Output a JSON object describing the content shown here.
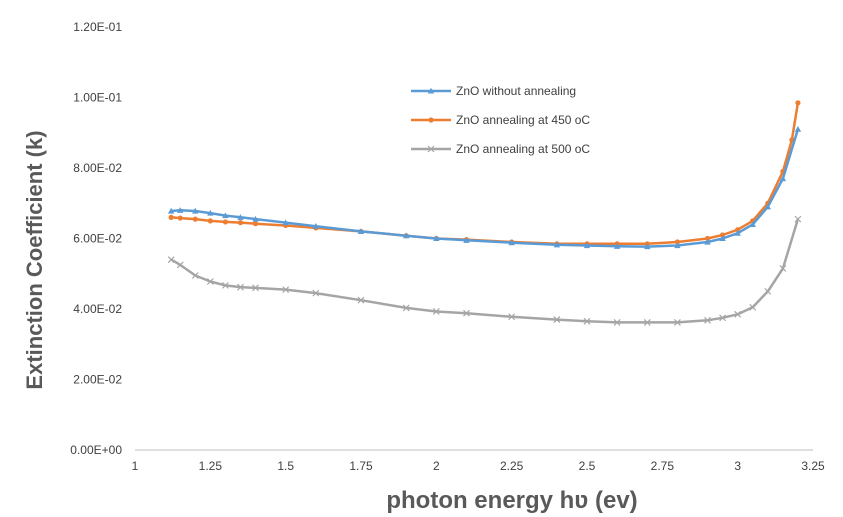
{
  "chart_data": {
    "type": "line",
    "title": "",
    "xlabel": "photon energy hʋ (ev)",
    "ylabel": "Extinction Coefficient (k)",
    "xlim": [
      1,
      3.25
    ],
    "ylim": [
      0,
      0.12
    ],
    "x_ticks": [
      1,
      1.25,
      1.5,
      1.75,
      2,
      2.25,
      2.5,
      2.75,
      3,
      3.25
    ],
    "x_tick_labels": [
      "1",
      "1.25",
      "1.5",
      "1.75",
      "2",
      "2.25",
      "2.5",
      "2.75",
      "3",
      "3.25"
    ],
    "y_ticks": [
      0,
      0.02,
      0.04,
      0.06,
      0.08,
      0.1,
      0.12
    ],
    "y_tick_labels": [
      "0.00E+00",
      "2.00E-02",
      "4.00E-02",
      "6.00E-02",
      "8.00E-02",
      "1.00E-01",
      "1.20E-01"
    ],
    "grid": false,
    "legend_position": "top-right",
    "series": [
      {
        "name": "ZnO without annealing",
        "color": "#5B9BD5",
        "marker": "triangle",
        "x": [
          1.12,
          1.15,
          1.2,
          1.25,
          1.3,
          1.35,
          1.4,
          1.5,
          1.6,
          1.75,
          1.9,
          2.0,
          2.1,
          2.25,
          2.4,
          2.5,
          2.6,
          2.7,
          2.8,
          2.9,
          2.95,
          3.0,
          3.05,
          3.1,
          3.15,
          3.2
        ],
        "y": [
          0.0678,
          0.068,
          0.0678,
          0.0672,
          0.0665,
          0.066,
          0.0655,
          0.0645,
          0.0635,
          0.062,
          0.0608,
          0.06,
          0.0595,
          0.0588,
          0.0582,
          0.058,
          0.0578,
          0.0577,
          0.058,
          0.059,
          0.06,
          0.0615,
          0.064,
          0.069,
          0.077,
          0.091
        ]
      },
      {
        "name": "ZnO annealing at 450 oC",
        "color": "#ED7D31",
        "marker": "circle",
        "x": [
          1.12,
          1.15,
          1.2,
          1.25,
          1.3,
          1.35,
          1.4,
          1.5,
          1.6,
          1.75,
          1.9,
          2.0,
          2.1,
          2.25,
          2.4,
          2.5,
          2.6,
          2.7,
          2.8,
          2.9,
          2.95,
          3.0,
          3.05,
          3.1,
          3.15,
          3.18,
          3.2
        ],
        "y": [
          0.066,
          0.0658,
          0.0655,
          0.065,
          0.0647,
          0.0645,
          0.0642,
          0.0637,
          0.063,
          0.062,
          0.0608,
          0.06,
          0.0597,
          0.059,
          0.0585,
          0.0585,
          0.0585,
          0.0585,
          0.059,
          0.06,
          0.061,
          0.0625,
          0.065,
          0.07,
          0.079,
          0.088,
          0.0985
        ]
      },
      {
        "name": "ZnO annealing at 500 oC",
        "color": "#A5A5A5",
        "marker": "x",
        "x": [
          1.12,
          1.15,
          1.2,
          1.25,
          1.3,
          1.35,
          1.4,
          1.5,
          1.6,
          1.75,
          1.9,
          2.0,
          2.1,
          2.25,
          2.4,
          2.5,
          2.6,
          2.7,
          2.8,
          2.9,
          2.95,
          3.0,
          3.05,
          3.1,
          3.15,
          3.2
        ],
        "y": [
          0.054,
          0.0525,
          0.0495,
          0.0478,
          0.0467,
          0.0462,
          0.046,
          0.0455,
          0.0445,
          0.0425,
          0.0403,
          0.0393,
          0.0388,
          0.0378,
          0.037,
          0.0365,
          0.0362,
          0.0362,
          0.0362,
          0.0368,
          0.0375,
          0.0385,
          0.0405,
          0.045,
          0.0515,
          0.0655
        ]
      }
    ]
  }
}
